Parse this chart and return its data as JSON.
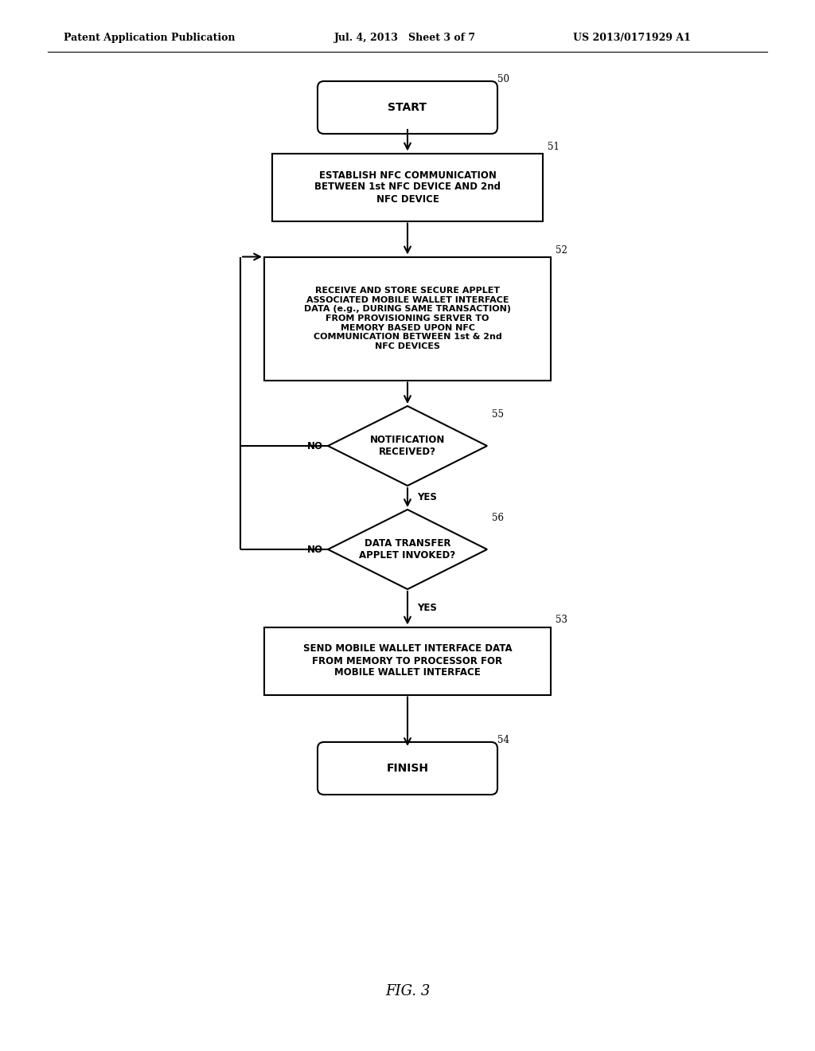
{
  "bg_color": "#ffffff",
  "header_left": "Patent Application Publication",
  "header_mid": "Jul. 4, 2013   Sheet 3 of 7",
  "header_right": "US 2013/0171929 A1",
  "caption": "FIG. 3",
  "start_label": "START",
  "finish_label": "FINISH",
  "box51_text": "ESTABLISH NFC COMMUNICATION\nBETWEEN 1st NFC DEVICE AND 2nd\nNFC DEVICE",
  "box52_text": "RECEIVE AND STORE SECURE APPLET\nASSOCIATED MOBILE WALLET INTERFACE\nDATA (e.g., DURING SAME TRANSACTION)\nFROM PROVISIONING SERVER TO\nMEMORY BASED UPON NFC\nCOMMUNICATION BETWEEN 1st & 2nd\nNFC DEVICES",
  "d55_text": "NOTIFICATION\nRECEIVED?",
  "d56_text": "DATA TRANSFER\nAPPLET INVOKED?",
  "box53_text": "SEND MOBILE WALLET INTERFACE DATA\nFROM MEMORY TO PROCESSOR FOR\nMOBILE WALLET INTERFACE",
  "ref50": "50",
  "ref51": "51",
  "ref52": "52",
  "ref55": "55",
  "ref56": "56",
  "ref53": "53",
  "ref54": "54",
  "yes_label": "YES",
  "no_label": "NO"
}
